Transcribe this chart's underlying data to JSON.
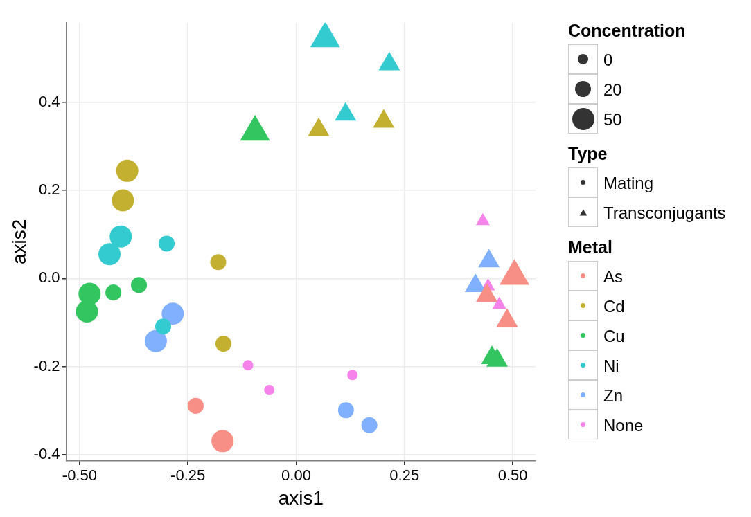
{
  "chart_data": {
    "type": "bubble",
    "xlabel": "axis1",
    "ylabel": "axis2",
    "legend_title": "Metal",
    "annotations": [
      "Concentration",
      "Type",
      "Mating",
      "Transconjugants"
    ],
    "xlim": [
      -0.531,
      0.553
    ],
    "ylim": [
      -0.414,
      0.58
    ],
    "xticks": [
      {
        "value": -0.5,
        "label": "-0.50"
      },
      {
        "value": -0.25,
        "label": "-0.25"
      },
      {
        "value": 0,
        "label": "0.00"
      },
      {
        "value": 0.25,
        "label": "0.25"
      },
      {
        "value": 0.5,
        "label": "0.50"
      }
    ],
    "yticks": [
      {
        "value": -0.4,
        "label": "-0.4"
      },
      {
        "value": -0.2,
        "label": "-0.2"
      },
      {
        "value": 0,
        "label": "0.0"
      },
      0.2,
      0.4
    ],
    "grid": true,
    "legend": "right",
    "size_legend": [
      {
        "value": 0.22,
        "label": "0"
      },
      {
        "value": 0.52,
        "label": "20"
      },
      {
        "value": 1,
        "label": "50"
      }
    ],
    "series": [
      {
        "name": "As",
        "color": "#f88f86",
        "marker": "circle",
        "x": [
          -0.232,
          -0.17
        ],
        "values": [
          -0.289,
          -0.369
        ],
        "sizes": [
          0.52,
          1
        ]
      },
      {
        "name": "Cd",
        "color": "#c4b030",
        "marker": "circle",
        "x": [
          -0.39,
          -0.4,
          -0.18,
          -0.168
        ],
        "values": [
          0.244,
          0.177,
          0.037,
          -0.148
        ],
        "sizes": [
          1,
          1,
          0.52,
          0.52
        ]
      },
      {
        "name": "Cu",
        "color": "#33c660",
        "marker": "circle",
        "x": [
          -0.477,
          -0.422,
          -0.363,
          -0.483
        ],
        "values": [
          -0.035,
          -0.032,
          -0.015,
          -0.075
        ],
        "sizes": [
          1,
          0.52,
          0.52,
          1
        ]
      },
      {
        "name": "Ni",
        "color": "#33cbd0",
        "marker": "circle",
        "x": [
          -0.405,
          -0.431,
          -0.299,
          -0.307
        ],
        "values": [
          0.095,
          0.055,
          0.079,
          -0.109
        ],
        "sizes": [
          1,
          1,
          0.52,
          0.52
        ]
      },
      {
        "name": "Zn",
        "color": "#80b0ff",
        "marker": "circle",
        "x": [
          -0.285,
          -0.324,
          0.115,
          0.169
        ],
        "values": [
          -0.08,
          -0.142,
          -0.299,
          -0.333
        ],
        "sizes": [
          1,
          1,
          0.52,
          0.52
        ]
      },
      {
        "name": "None",
        "color": "#f683e9",
        "marker": "circle",
        "x": [
          -0.111,
          -0.062,
          0.13
        ],
        "values": [
          -0.197,
          -0.253,
          -0.219
        ],
        "sizes": [
          0.22,
          0.22,
          0.22
        ]
      },
      {
        "color": "#f88f86",
        "marker": "triangle",
        "x": [
          0.504,
          0.44,
          0.487
        ],
        "values": [
          0.005,
          -0.039,
          -0.096
        ],
        "sizes": [
          1,
          0.52,
          0.52
        ]
      },
      {
        "color": "#c4b030",
        "marker": "triangle",
        "x": [
          0.202,
          0.052
        ],
        "values": [
          0.356,
          0.337
        ],
        "sizes": [
          0.52,
          0.52
        ]
      },
      {
        "color": "#33c660",
        "marker": "triangle",
        "x": [
          -0.095,
          0.452,
          0.464
        ],
        "values": [
          0.332,
          -0.18,
          -0.186
        ],
        "sizes": [
          1,
          0.52,
          0.52
        ]
      },
      {
        "color": "#33cbd0",
        "marker": "triangle",
        "x": [
          0.067,
          0.215,
          0.114
        ],
        "values": [
          0.544,
          0.486,
          0.372
        ],
        "sizes": [
          1,
          0.52,
          0.52
        ]
      },
      {
        "color": "#80b0ff",
        "marker": "triangle",
        "x": [
          0.445,
          0.414
        ],
        "values": [
          0.039,
          -0.017
        ],
        "sizes": [
          0.52,
          0.52
        ]
      },
      {
        "color": "#f683e9",
        "marker": "triangle",
        "x": [
          0.431,
          0.443,
          0.469
        ],
        "values": [
          0.13,
          -0.018,
          -0.06
        ],
        "sizes": [
          0.22,
          0.22,
          0.22
        ]
      }
    ]
  }
}
